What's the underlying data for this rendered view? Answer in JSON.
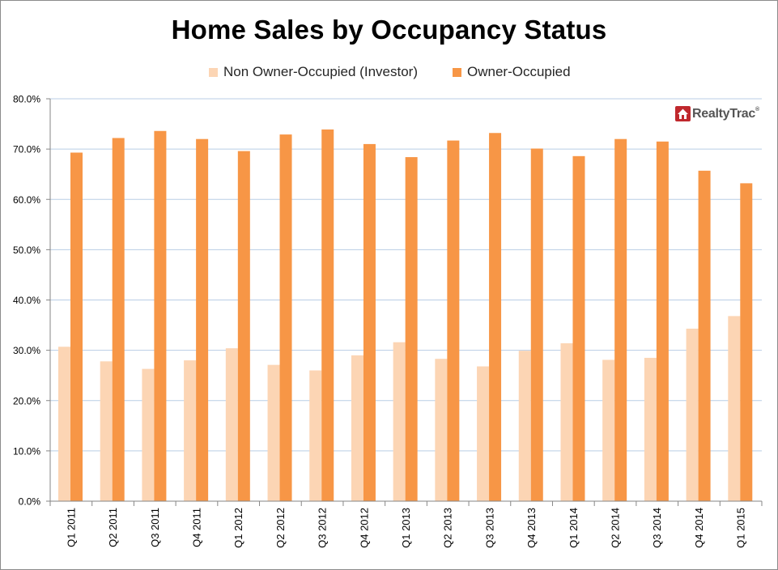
{
  "chart_data": {
    "type": "bar",
    "title": "Home Sales by Occupancy Status",
    "xlabel": "",
    "ylabel": "",
    "ylim": [
      0,
      80
    ],
    "yticks": [
      "0.0%",
      "10.0%",
      "20.0%",
      "30.0%",
      "40.0%",
      "50.0%",
      "60.0%",
      "70.0%",
      "80.0%"
    ],
    "grid": true,
    "legend_position": "top",
    "categories": [
      "Q1 2011",
      "Q2 2011",
      "Q3 2011",
      "Q4 2011",
      "Q1 2012",
      "Q2 2012",
      "Q3 2012",
      "Q4 2012",
      "Q1 2013",
      "Q2 2013",
      "Q3 2013",
      "Q4 2013",
      "Q1 2014",
      "Q2 2014",
      "Q3 2014",
      "Q4 2014",
      "Q1 2015"
    ],
    "series": [
      {
        "name": "Non Owner-Occupied (Investor)",
        "color": "#fcd5b4",
        "values": [
          30.7,
          27.8,
          26.3,
          28.0,
          30.4,
          27.1,
          26.0,
          29.0,
          31.6,
          28.3,
          26.8,
          29.9,
          31.4,
          28.1,
          28.5,
          34.3,
          36.8
        ]
      },
      {
        "name": "Owner-Occupied",
        "color": "#f79646",
        "values": [
          69.3,
          72.2,
          73.6,
          72.0,
          69.6,
          72.9,
          73.9,
          71.0,
          68.4,
          71.7,
          73.2,
          70.1,
          68.6,
          72.0,
          71.5,
          65.7,
          63.2
        ]
      }
    ]
  },
  "logo": {
    "text": "RealtyTrac",
    "mark": "®",
    "icon": "house-icon",
    "color": "#c0282d"
  },
  "colors": {
    "gridline": "#b9cde5",
    "axis": "#868686"
  }
}
